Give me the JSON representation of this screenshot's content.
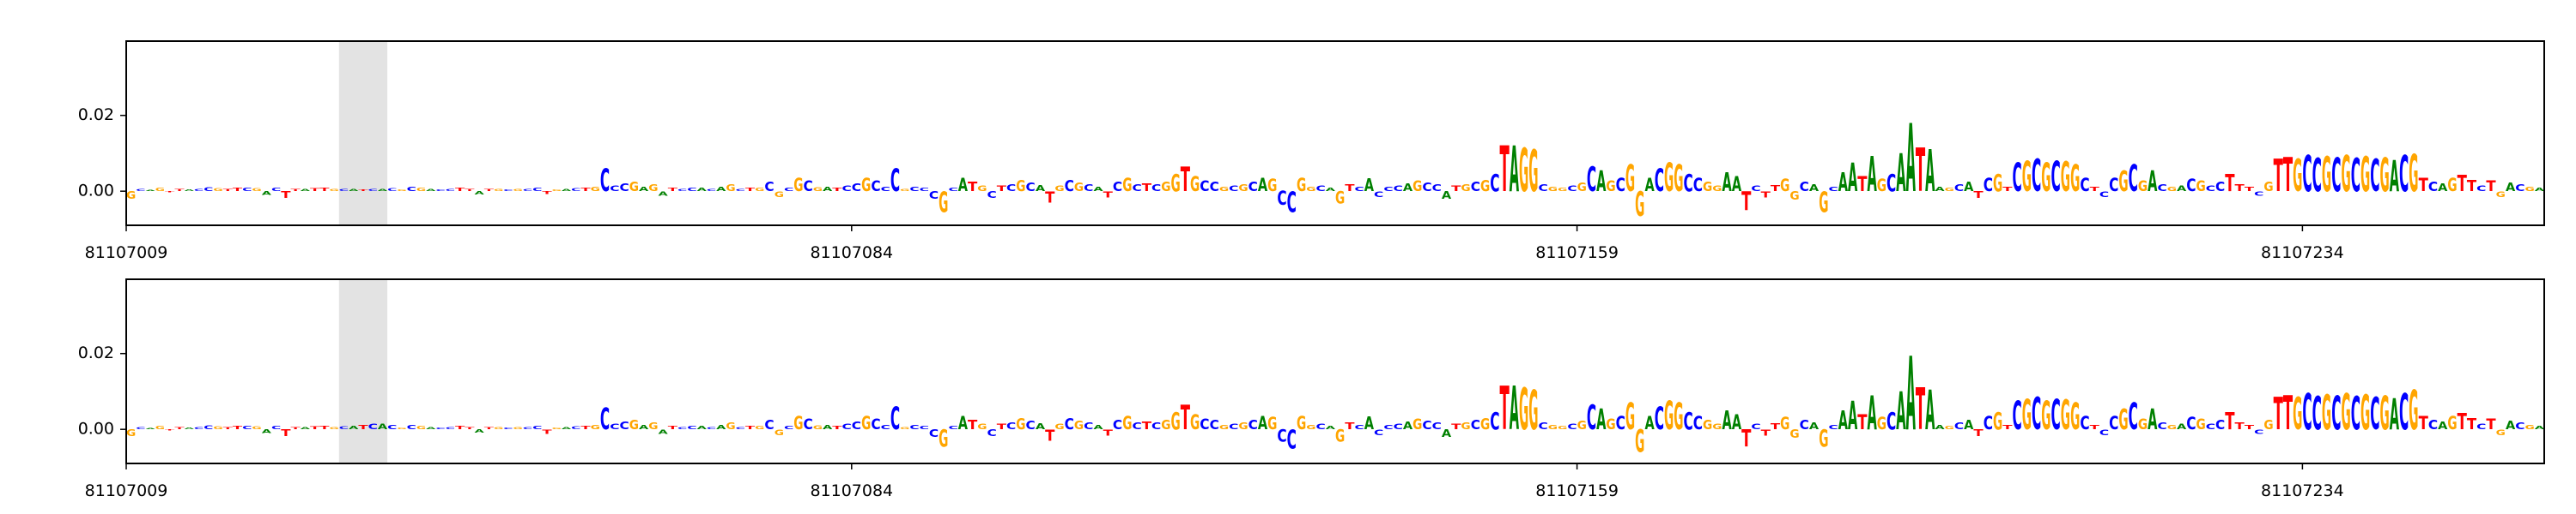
{
  "chart_data": [
    {
      "type": "logo",
      "sequence": "GCAGTTACCGTTCGACTTATTGCATCACGCGACCTTATGCGCCTGACTGCCCGAGATCCACAGCTGCGCGCGATCCGCCCGCCCGCATGCTCGCATGCGCATCGCTCGGTGCCGCGCAGCCGGCAGTCACCCAGCCATGCGCTAGGCGGCGCAGCGGACGGCCGGAATCTTGGCAGCAATAGCAATAAGCATCGTCGCGCGGCTCCGCGACGACGCCTTTCGTTGCCGCGCGCGACGTCAGTTCTGACGA",
      "values": [
        -0.002,
        0.0005,
        0.0003,
        0.0008,
        -0.0003,
        0.0005,
        0.0004,
        0.0006,
        0.001,
        0.0007,
        0.0006,
        0.0008,
        0.0009,
        0.0007,
        -0.001,
        0.0008,
        -0.0018,
        0.0006,
        0.0005,
        0.0007,
        0.0008,
        0.0006,
        0.0005,
        0.0006,
        0.0004,
        0.0005,
        0.0006,
        0.0007,
        0.0004,
        0.0012,
        0.0009,
        0.0006,
        0.0004,
        0.0005,
        0.0008,
        0.0005,
        -0.0009,
        0.0006,
        0.0005,
        0.0004,
        0.0005,
        0.0006,
        0.0008,
        -0.0007,
        0.0004,
        0.0006,
        0.0007,
        0.0008,
        0.0012,
        0.006,
        0.0015,
        0.002,
        0.0025,
        0.0012,
        0.0018,
        -0.0012,
        0.0008,
        0.0006,
        0.0009,
        0.0008,
        0.0005,
        0.0012,
        0.0018,
        0.0006,
        0.0009,
        0.0008,
        0.0025,
        -0.0015,
        0.0009,
        0.0035,
        0.0028,
        0.001,
        0.0012,
        0.0008,
        0.0015,
        0.002,
        0.0035,
        0.0028,
        0.0012,
        0.006,
        0.0005,
        0.0012,
        0.0008,
        -0.002,
        -0.0055,
        0.0008,
        0.0035,
        0.0025,
        0.0015,
        -0.0018,
        0.0014,
        0.0018,
        0.003,
        0.0022,
        0.0016,
        -0.003,
        0.0014,
        0.003,
        0.0022,
        0.0018,
        0.0012,
        -0.0016,
        0.0025,
        0.0035,
        0.0018,
        0.002,
        0.0018,
        0.0025,
        0.0045,
        0.0065,
        0.004,
        0.0028,
        0.0025,
        0.0012,
        0.0015,
        0.0018,
        0.0025,
        0.0035,
        0.0032,
        -0.0036,
        -0.0055,
        0.0035,
        0.0012,
        0.0014,
        0.0009,
        -0.0032,
        0.0018,
        0.0012,
        0.0034,
        -0.0015,
        0.0012,
        0.0014,
        0.002,
        0.0028,
        0.0022,
        0.0018,
        -0.002,
        0.0015,
        0.0018,
        0.0025,
        0.003,
        0.0045,
        0.012,
        0.012,
        0.0115,
        0.011,
        0.0018,
        0.0012,
        0.0008,
        0.0015,
        0.0022,
        0.0065,
        0.0055,
        0.0028,
        0.0035,
        0.007,
        -0.0065,
        0.0035,
        0.006,
        0.0075,
        0.007,
        0.0045,
        0.0035,
        0.0025,
        0.0015,
        0.005,
        0.004,
        -0.005,
        0.0015,
        -0.0016,
        0.0016,
        0.0032,
        -0.0022,
        0.0025,
        0.0018,
        -0.0055,
        0.0012,
        0.005,
        0.0075,
        0.004,
        0.0092,
        0.0032,
        0.0045,
        0.01,
        0.018,
        0.0115,
        0.011,
        0.0012,
        0.0008,
        0.0018,
        0.0025,
        -0.0018,
        0.0035,
        0.0045,
        0.0012,
        0.0075,
        0.008,
        0.0085,
        0.0075,
        0.008,
        0.0078,
        0.007,
        0.0035,
        0.0012,
        -0.0015,
        0.0035,
        0.0055,
        0.007,
        0.0028,
        0.0055,
        0.0018,
        0.0012,
        0.0015,
        0.0032,
        0.0028,
        0.0015,
        0.0025,
        0.0045,
        0.0018,
        0.0012,
        -0.0012,
        0.0025,
        0.0085,
        0.009,
        0.0085,
        0.0095,
        0.0088,
        0.0092,
        0.009,
        0.0095,
        0.0088,
        0.0092,
        0.0085,
        0.009,
        0.0082,
        0.0095,
        0.0098,
        0.0035,
        0.0025,
        0.002,
        0.0035,
        0.0042,
        0.003,
        0.0015,
        0.0028,
        -0.0015,
        0.0022,
        0.0018,
        0.0012,
        0.0008
      ],
      "colors": {
        "A": "#008000",
        "C": "#0000ff",
        "G": "#ffa500",
        "T": "#ff0000"
      },
      "highlight": [
        81107031,
        81107036
      ],
      "highlight_color": "#e3e3e3",
      "xlim": [
        81107009,
        81107259
      ],
      "xticks": [
        81107009,
        81107084,
        81107159,
        81107234
      ],
      "ylim": [
        -0.009,
        0.0396
      ],
      "yticks": [
        {
          "value": 0,
          "label": "0.00"
        },
        {
          "value": 0.02,
          "label": "0.02"
        }
      ]
    },
    {
      "type": "logo",
      "sequence": "GCAGTTACCGTTCGACTTATTGCATCACGCGACCTTATGCGCCTGACTGCCCGAGATCCACAGCTGCGCGCGATCCGCCCGCCCGCATGCTCGCATGCGCATCGCTCGGTGCCGCGCAGCCGGCAGTCACCCAGCCATGCGCTAGGCGGCGCAGCGGACGGCCGGAATCTTGGCAGCAATAGCAATAAGCATCGTCGCGCGGCTCCGCGACGACGCCTTTCGTTGCCGCGCGCGACGTCAGTTCTGACGA",
      "values": [
        -0.0018,
        0.0005,
        0.0003,
        0.0008,
        -0.0003,
        0.0005,
        0.0004,
        0.0006,
        0.001,
        0.0007,
        0.0006,
        0.0008,
        0.0009,
        0.0007,
        -0.001,
        0.0008,
        -0.0018,
        0.0006,
        0.0005,
        0.0007,
        0.0008,
        0.0006,
        0.0007,
        0.0009,
        0.0012,
        0.0015,
        0.0014,
        0.0012,
        0.0004,
        0.0012,
        0.0009,
        0.0006,
        0.0004,
        0.0005,
        0.0008,
        0.0005,
        -0.0009,
        0.0006,
        0.0005,
        0.0004,
        0.0005,
        0.0006,
        0.0008,
        -0.0012,
        0.0004,
        0.0006,
        0.0007,
        0.0008,
        0.0012,
        0.0058,
        0.0015,
        0.002,
        0.0025,
        0.0012,
        0.0018,
        -0.0012,
        0.0008,
        0.0006,
        0.0009,
        0.0008,
        0.0005,
        0.0012,
        0.0018,
        0.0006,
        0.0009,
        0.0008,
        0.0025,
        -0.0015,
        0.0009,
        0.0035,
        0.0028,
        0.001,
        0.0012,
        0.0008,
        0.0015,
        0.002,
        0.0035,
        0.0028,
        0.0012,
        0.006,
        0.0005,
        0.0012,
        0.0008,
        -0.002,
        -0.0045,
        0.0008,
        0.0035,
        0.0025,
        0.0015,
        -0.0018,
        0.0014,
        0.0018,
        0.003,
        0.0022,
        0.0016,
        -0.003,
        0.0014,
        0.003,
        0.0022,
        0.0018,
        0.0012,
        -0.0016,
        0.0025,
        0.0035,
        0.0018,
        0.002,
        0.0018,
        0.0025,
        0.0045,
        0.0065,
        0.004,
        0.0028,
        0.0025,
        0.0012,
        0.0015,
        0.0018,
        0.0025,
        0.0035,
        0.0032,
        -0.0032,
        -0.005,
        0.0035,
        0.0012,
        0.0014,
        0.0009,
        -0.0032,
        0.0018,
        0.0012,
        0.0034,
        -0.0015,
        0.0012,
        0.0014,
        0.002,
        0.0028,
        0.0022,
        0.0018,
        -0.002,
        0.0015,
        0.0018,
        0.0025,
        0.003,
        0.0045,
        0.0115,
        0.0115,
        0.011,
        0.0105,
        0.0018,
        0.0012,
        0.0008,
        0.0015,
        0.0022,
        0.0065,
        0.0055,
        0.0028,
        0.0035,
        0.007,
        -0.006,
        0.0035,
        0.006,
        0.0075,
        0.007,
        0.0045,
        0.0035,
        0.0025,
        0.0015,
        0.005,
        0.004,
        -0.0045,
        0.0015,
        -0.0016,
        0.0016,
        0.0032,
        -0.0022,
        0.0025,
        0.0018,
        -0.0045,
        0.0012,
        0.005,
        0.0075,
        0.004,
        0.009,
        0.0032,
        0.0045,
        0.01,
        0.0195,
        0.011,
        0.0105,
        0.0012,
        0.0008,
        0.0018,
        0.0025,
        -0.0018,
        0.0035,
        0.0045,
        0.0012,
        0.0075,
        0.008,
        0.0085,
        0.0075,
        0.008,
        0.0078,
        0.007,
        0.0035,
        0.0012,
        -0.0015,
        0.0035,
        0.0055,
        0.007,
        0.0028,
        0.0055,
        0.0018,
        0.0012,
        0.0015,
        0.0032,
        0.0028,
        0.0015,
        0.0025,
        0.0045,
        0.0018,
        0.0012,
        -0.0012,
        0.0025,
        0.0085,
        0.009,
        0.0085,
        0.0095,
        0.0088,
        0.0092,
        0.009,
        0.0095,
        0.0088,
        0.0092,
        0.0085,
        0.009,
        0.0082,
        0.0095,
        0.0105,
        0.0035,
        0.0025,
        0.002,
        0.0035,
        0.0042,
        0.003,
        0.0015,
        0.0028,
        -0.0015,
        0.0022,
        0.0018,
        0.0012,
        0.0008
      ],
      "colors": {
        "A": "#008000",
        "C": "#0000ff",
        "G": "#ffa500",
        "T": "#ff0000"
      },
      "highlight": [
        81107031,
        81107036
      ],
      "highlight_color": "#e3e3e3",
      "xlim": [
        81107009,
        81107259
      ],
      "xticks": [
        81107009,
        81107084,
        81107159,
        81107234
      ],
      "ylim": [
        -0.009,
        0.0396
      ],
      "yticks": [
        {
          "value": 0,
          "label": "0.00"
        },
        {
          "value": 0.02,
          "label": "0.02"
        }
      ]
    }
  ]
}
